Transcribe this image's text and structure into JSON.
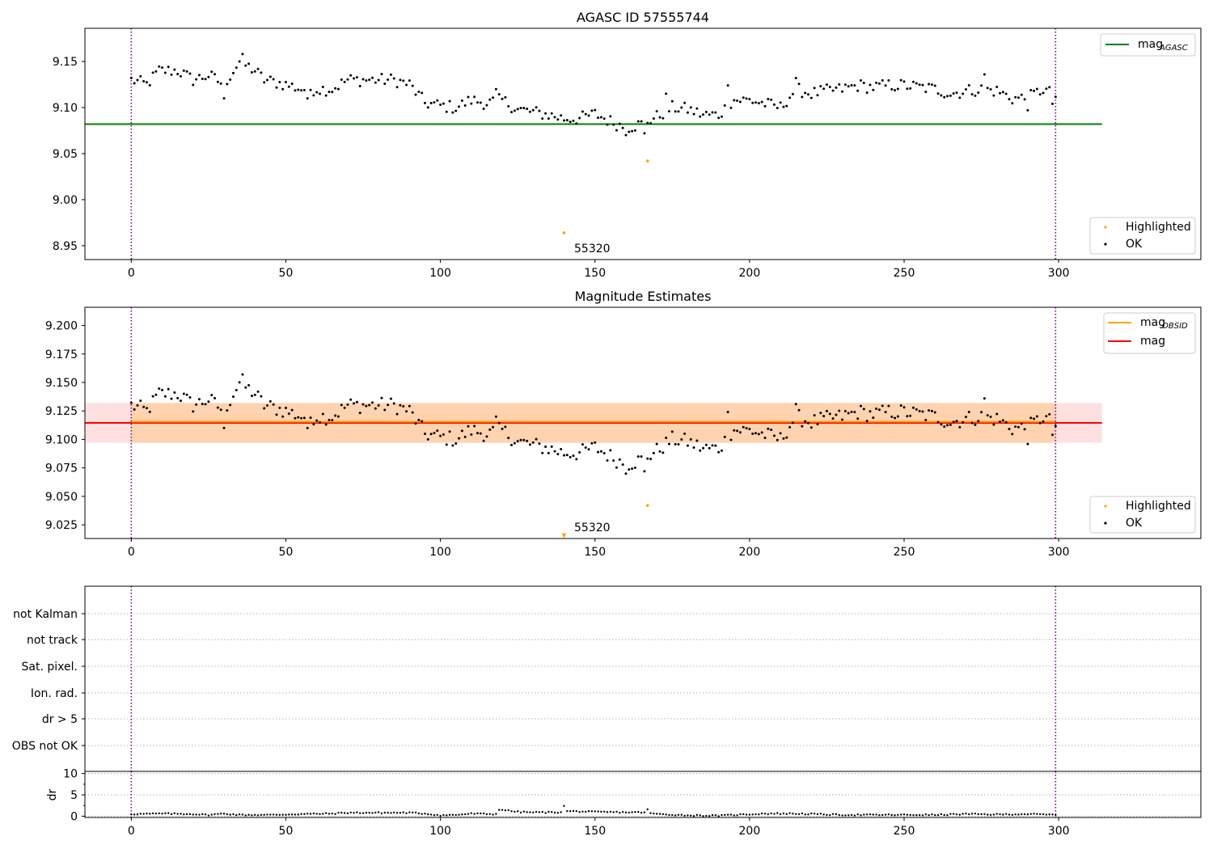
{
  "chart_data": [
    {
      "type": "scatter",
      "title": "AGASC ID 57555744",
      "xlim": [
        -15,
        346
      ],
      "ylim": [
        8.935,
        9.186
      ],
      "xticks": [
        0,
        50,
        100,
        150,
        200,
        250,
        300
      ],
      "yticks": [
        8.95,
        9.0,
        9.05,
        9.1,
        9.15
      ],
      "ytick_labels": [
        "8.95",
        "9.00",
        "9.05",
        "9.10",
        "9.15"
      ],
      "vlines": [
        0,
        299
      ],
      "hline": {
        "name": "mag",
        "subscript": "AGASC",
        "y": 9.082,
        "x0": -15,
        "x1": 314,
        "color": "#008000"
      },
      "legend_top": [
        {
          "name": "mag",
          "subscript": "AGASC",
          "color": "#008000"
        }
      ],
      "legend_bottom": [
        {
          "name": "Highlighted",
          "color": "#ffa500"
        },
        {
          "name": "OK",
          "color": "#000000"
        }
      ],
      "highlighted": [
        {
          "x": 140,
          "y": 8.964
        },
        {
          "x": 167,
          "y": 9.042
        }
      ],
      "annotation": {
        "text": "55320",
        "x": 143,
        "y": 8.941
      },
      "ok_anchors": [
        [
          0,
          9.13
        ],
        [
          5,
          9.125
        ],
        [
          9,
          9.14
        ],
        [
          15,
          9.14
        ],
        [
          20,
          9.13
        ],
        [
          25,
          9.135
        ],
        [
          30,
          9.125
        ],
        [
          35,
          9.15
        ],
        [
          40,
          9.14
        ],
        [
          43,
          9.13
        ],
        [
          50,
          9.125
        ],
        [
          55,
          9.12
        ],
        [
          60,
          9.12
        ],
        [
          65,
          9.12
        ],
        [
          70,
          9.13
        ],
        [
          75,
          9.13
        ],
        [
          80,
          9.13
        ],
        [
          85,
          9.13
        ],
        [
          90,
          9.125
        ],
        [
          95,
          9.105
        ],
        [
          100,
          9.102
        ],
        [
          105,
          9.1
        ],
        [
          110,
          9.108
        ],
        [
          115,
          9.105
        ],
        [
          120,
          9.108
        ],
        [
          125,
          9.098
        ],
        [
          130,
          9.095
        ],
        [
          135,
          9.092
        ],
        [
          140,
          9.088
        ],
        [
          145,
          9.088
        ],
        [
          150,
          9.093
        ],
        [
          155,
          9.085
        ],
        [
          160,
          9.078
        ],
        [
          165,
          9.082
        ],
        [
          170,
          9.09
        ],
        [
          175,
          9.1
        ],
        [
          180,
          9.098
        ],
        [
          185,
          9.092
        ],
        [
          190,
          9.092
        ],
        [
          195,
          9.108
        ],
        [
          200,
          9.108
        ],
        [
          205,
          9.104
        ],
        [
          210,
          9.1
        ],
        [
          215,
          9.12
        ],
        [
          220,
          9.115
        ],
        [
          225,
          9.118
        ],
        [
          230,
          9.12
        ],
        [
          235,
          9.124
        ],
        [
          240,
          9.122
        ],
        [
          245,
          9.124
        ],
        [
          250,
          9.124
        ],
        [
          255,
          9.122
        ],
        [
          260,
          9.12
        ],
        [
          265,
          9.115
        ],
        [
          270,
          9.118
        ],
        [
          275,
          9.12
        ],
        [
          280,
          9.118
        ],
        [
          285,
          9.11
        ],
        [
          290,
          9.11
        ],
        [
          295,
          9.12
        ],
        [
          299,
          9.112
        ]
      ],
      "ok_outliers": [
        [
          30,
          9.11
        ],
        [
          36,
          9.158
        ],
        [
          57,
          9.11
        ],
        [
          118,
          9.12
        ],
        [
          160,
          9.07
        ],
        [
          166,
          9.072
        ],
        [
          173,
          9.115
        ],
        [
          193,
          9.124
        ],
        [
          215,
          9.132
        ],
        [
          276,
          9.136
        ],
        [
          290,
          9.097
        ],
        [
          298,
          9.104
        ]
      ]
    },
    {
      "type": "scatter",
      "title": "Magnitude Estimates",
      "xlim": [
        -15,
        346
      ],
      "ylim": [
        9.013,
        9.216
      ],
      "xticks": [
        0,
        50,
        100,
        150,
        200,
        250,
        300
      ],
      "yticks": [
        9.025,
        9.05,
        9.075,
        9.1,
        9.125,
        9.15,
        9.175,
        9.2
      ],
      "ytick_labels": [
        "9.025",
        "9.050",
        "9.075",
        "9.100",
        "9.125",
        "9.150",
        "9.175",
        "9.200"
      ],
      "vlines": [
        0,
        299
      ],
      "band_obsid": {
        "x0": 0,
        "x1": 299,
        "y0": 9.097,
        "y1": 9.132,
        "color": "#ffa500"
      },
      "band_mag": {
        "x0": -15,
        "x1": 314,
        "y0": 9.097,
        "y1": 9.132,
        "color": "#ff0000"
      },
      "hline_obsid": {
        "y": 9.1145,
        "x0": 0,
        "x1": 299,
        "color": "#ffa500"
      },
      "hline_mag": {
        "y": 9.1145,
        "x0": -15,
        "x1": 314,
        "color": "#ff0000"
      },
      "legend_top": [
        {
          "name": "mag",
          "subscript": "OBSID",
          "color": "#ffa500"
        },
        {
          "name": "mag",
          "subscript": "",
          "color": "#ff0000"
        }
      ],
      "legend_bottom": [
        {
          "name": "Highlighted",
          "color": "#ffa500"
        },
        {
          "name": "OK",
          "color": "#000000"
        }
      ],
      "highlighted": [
        {
          "x": 167,
          "y": 9.042
        }
      ],
      "offscale_marker": {
        "x": 140,
        "y": 9.0155
      },
      "annotation": {
        "text": "55320",
        "x": 143,
        "y": 9.019
      },
      "ok_anchors": [
        [
          0,
          9.13
        ],
        [
          5,
          9.125
        ],
        [
          9,
          9.14
        ],
        [
          15,
          9.14
        ],
        [
          20,
          9.13
        ],
        [
          25,
          9.135
        ],
        [
          30,
          9.125
        ],
        [
          35,
          9.15
        ],
        [
          40,
          9.14
        ],
        [
          43,
          9.13
        ],
        [
          50,
          9.125
        ],
        [
          55,
          9.12
        ],
        [
          60,
          9.12
        ],
        [
          65,
          9.12
        ],
        [
          70,
          9.13
        ],
        [
          75,
          9.13
        ],
        [
          80,
          9.13
        ],
        [
          85,
          9.13
        ],
        [
          90,
          9.125
        ],
        [
          95,
          9.105
        ],
        [
          100,
          9.102
        ],
        [
          105,
          9.1
        ],
        [
          110,
          9.108
        ],
        [
          115,
          9.105
        ],
        [
          120,
          9.108
        ],
        [
          125,
          9.098
        ],
        [
          130,
          9.095
        ],
        [
          135,
          9.092
        ],
        [
          140,
          9.088
        ],
        [
          145,
          9.088
        ],
        [
          150,
          9.093
        ],
        [
          155,
          9.085
        ],
        [
          160,
          9.078
        ],
        [
          165,
          9.082
        ],
        [
          170,
          9.09
        ],
        [
          175,
          9.1
        ],
        [
          180,
          9.098
        ],
        [
          185,
          9.092
        ],
        [
          190,
          9.092
        ],
        [
          195,
          9.108
        ],
        [
          200,
          9.108
        ],
        [
          205,
          9.104
        ],
        [
          210,
          9.1
        ],
        [
          215,
          9.12
        ],
        [
          220,
          9.115
        ],
        [
          225,
          9.118
        ],
        [
          230,
          9.12
        ],
        [
          235,
          9.124
        ],
        [
          240,
          9.122
        ],
        [
          245,
          9.124
        ],
        [
          250,
          9.124
        ],
        [
          255,
          9.122
        ],
        [
          260,
          9.12
        ],
        [
          265,
          9.115
        ],
        [
          270,
          9.118
        ],
        [
          275,
          9.12
        ],
        [
          280,
          9.118
        ],
        [
          285,
          9.11
        ],
        [
          290,
          9.11
        ],
        [
          295,
          9.12
        ],
        [
          299,
          9.112
        ]
      ],
      "ok_outliers": [
        [
          30,
          9.11
        ],
        [
          36,
          9.157
        ],
        [
          57,
          9.11
        ],
        [
          118,
          9.12
        ],
        [
          160,
          9.07
        ],
        [
          166,
          9.072
        ],
        [
          193,
          9.124
        ],
        [
          215,
          9.131
        ],
        [
          276,
          9.136
        ],
        [
          290,
          9.096
        ],
        [
          298,
          9.104
        ]
      ]
    },
    {
      "type": "scatter",
      "title": "",
      "xlim": [
        -15,
        346
      ],
      "yticks": [
        "not Kalman",
        "not track",
        "Sat. pixel.",
        "Ion. rad.",
        "dr > 5",
        "OBS not OK"
      ],
      "vlines": [
        0,
        299
      ],
      "grid": "horizontal dotted"
    },
    {
      "type": "scatter",
      "title": "",
      "ylabel": "dr",
      "xlim": [
        -15,
        346
      ],
      "ylim": [
        -0.3,
        10.5
      ],
      "xticks": [
        0,
        50,
        100,
        150,
        200,
        250,
        300
      ],
      "yticks": [
        0,
        5,
        10
      ],
      "ytick_labels": [
        "0",
        "5",
        "10"
      ],
      "vlines": [
        0,
        299
      ],
      "dr_anchors": [
        [
          0,
          0.5
        ],
        [
          10,
          0.6
        ],
        [
          20,
          0.5
        ],
        [
          25,
          0.3
        ],
        [
          30,
          0.6
        ],
        [
          35,
          0.3
        ],
        [
          45,
          0.3
        ],
        [
          55,
          0.5
        ],
        [
          65,
          0.6
        ],
        [
          70,
          0.8
        ],
        [
          80,
          0.8
        ],
        [
          90,
          0.8
        ],
        [
          95,
          0.6
        ],
        [
          100,
          0.2
        ],
        [
          105,
          0.3
        ],
        [
          110,
          0.6
        ],
        [
          115,
          0.5
        ],
        [
          118,
          0.5
        ],
        [
          119,
          1.6
        ],
        [
          125,
          1.0
        ],
        [
          130,
          0.9
        ],
        [
          138,
          0.9
        ],
        [
          140,
          1.2
        ],
        [
          150,
          1.0
        ],
        [
          160,
          0.9
        ],
        [
          166,
          0.9
        ],
        [
          170,
          0.5
        ],
        [
          180,
          0.2
        ],
        [
          190,
          0.1
        ],
        [
          195,
          0.3
        ],
        [
          205,
          0.6
        ],
        [
          215,
          0.6
        ],
        [
          230,
          0.3
        ],
        [
          240,
          0.3
        ],
        [
          250,
          0.3
        ],
        [
          260,
          0.3
        ],
        [
          270,
          0.5
        ],
        [
          280,
          0.4
        ],
        [
          290,
          0.5
        ],
        [
          299,
          0.3
        ]
      ],
      "dr_outliers": [
        [
          140,
          2.4
        ],
        [
          167,
          1.6
        ]
      ]
    }
  ]
}
